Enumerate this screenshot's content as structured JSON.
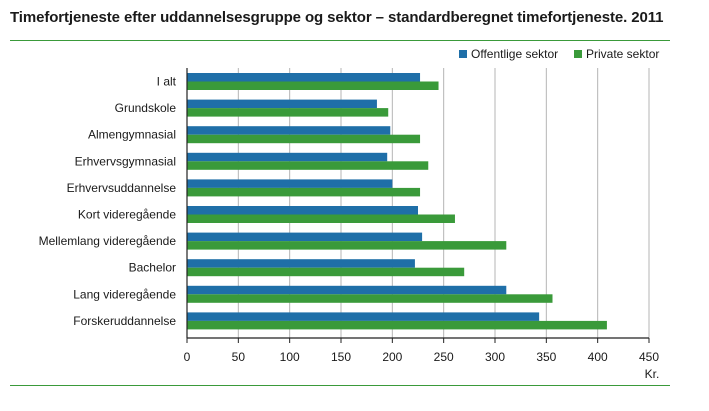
{
  "chart_data": {
    "type": "bar",
    "orientation": "horizontal",
    "title": "Timefortjeneste  efter uddannelsesgruppe  og sektor – standardberegnet  timefortjeneste. 2011",
    "xlabel": "Kr.",
    "xlim": [
      0,
      450
    ],
    "xticks": [
      0,
      50,
      100,
      150,
      200,
      250,
      300,
      350,
      400,
      450
    ],
    "grid": true,
    "legend_position": "top-right",
    "categories": [
      "I alt",
      "Grundskole",
      "Almengymnasial",
      "Erhvervsgymnasial",
      "Erhvervsuddannelse",
      "Kort videregående",
      "Mellemlang videregående",
      "Bachelor",
      "Lang videregående",
      "Forskeruddannelse"
    ],
    "series": [
      {
        "name": "Offentlige sektor",
        "color": "#1f6fa8",
        "values": [
          227,
          185,
          198,
          195,
          200,
          225,
          229,
          222,
          311,
          343
        ]
      },
      {
        "name": "Private sektor",
        "color": "#3a9a3a",
        "values": [
          245,
          196,
          227,
          235,
          227,
          261,
          311,
          270,
          356,
          409
        ]
      }
    ]
  }
}
